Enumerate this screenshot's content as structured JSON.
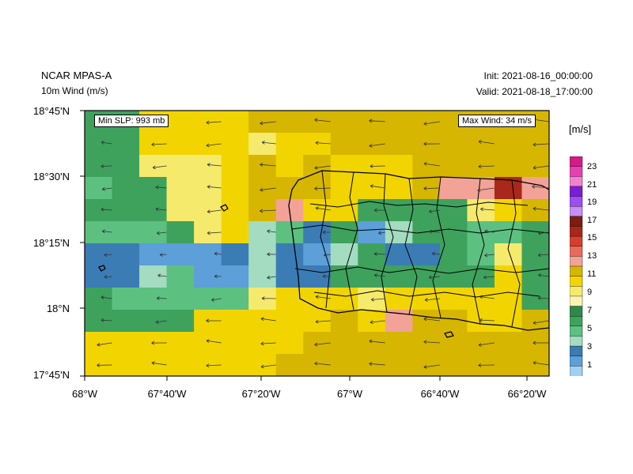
{
  "header": {
    "model": "NCAR MPAS-A",
    "field": "10m Wind (m/s)",
    "init": "Init: 2021-08-16_00:00:00",
    "valid": "Valid: 2021-08-18_17:00:00"
  },
  "annotations": {
    "min_slp": "Min SLP:   993 mb",
    "max_wind": "Max Wind:   34 m/s"
  },
  "axes": {
    "lat_labels": [
      "18°45'N",
      "18°30'N",
      "18°15'N",
      "18°N",
      "17°45'N"
    ],
    "lon_labels": [
      "68°W",
      "67°40'W",
      "67°20'W",
      "67°W",
      "66°40'W",
      "66°20'W"
    ]
  },
  "colorbar": {
    "unit": "[m/s]",
    "labels": [
      "23",
      "21",
      "19",
      "17",
      "15",
      "13",
      "11",
      "9",
      "7",
      "5",
      "3",
      "1"
    ],
    "colors": [
      "#d61a8a",
      "#e83fb0",
      "#f580d0",
      "#7a1fd6",
      "#9f4cf0",
      "#c58ff5",
      "#7c1d10",
      "#a8281b",
      "#d63f2f",
      "#ea6a5c",
      "#f2a297",
      "#d6b600",
      "#f2d500",
      "#f6ea6d",
      "#fbf3b3",
      "#2f8a4a",
      "#3ea25d",
      "#5cc081",
      "#a3dcc0",
      "#3b7cb5",
      "#5c9fd9",
      "#9fd1f4"
    ]
  },
  "chart_data": {
    "type": "heatmap",
    "title": "10m Wind (m/s)",
    "grid": {
      "lon_range": [
        -68.0,
        -66.25
      ],
      "lat_range": [
        17.75,
        18.75
      ],
      "values": [
        [
          6,
          6,
          10,
          10,
          10,
          10,
          11,
          11,
          11,
          11,
          11,
          11,
          11,
          11,
          11,
          11,
          11
        ],
        [
          6,
          6,
          10,
          10,
          10,
          10,
          9,
          10,
          10,
          11,
          11,
          11,
          11,
          11,
          11,
          11,
          11
        ],
        [
          6,
          6,
          9,
          9,
          9,
          10,
          11,
          10,
          11,
          10,
          10,
          10,
          11,
          11,
          11,
          11,
          11
        ],
        [
          5,
          6,
          6,
          9,
          9,
          10,
          11,
          11,
          11,
          10,
          10,
          10,
          11,
          12,
          12,
          15,
          12
        ],
        [
          6,
          6,
          6,
          9,
          9,
          10,
          11,
          12,
          10,
          10,
          6,
          6,
          6,
          6,
          9,
          10,
          11
        ],
        [
          5,
          5,
          5,
          6,
          9,
          10,
          4,
          5,
          3,
          6,
          2,
          4,
          6,
          6,
          5,
          5,
          6
        ],
        [
          3,
          3,
          2,
          2,
          2,
          3,
          4,
          3,
          2,
          4,
          6,
          3,
          3,
          6,
          5,
          9,
          6
        ],
        [
          3,
          3,
          4,
          5,
          2,
          2,
          4,
          3,
          3,
          6,
          6,
          6,
          6,
          6,
          6,
          10,
          6
        ],
        [
          6,
          5,
          5,
          5,
          5,
          5,
          9,
          10,
          10,
          10,
          9,
          10,
          10,
          10,
          10,
          10,
          6
        ],
        [
          6,
          6,
          6,
          6,
          10,
          10,
          10,
          10,
          10,
          11,
          10,
          12,
          11,
          11,
          10,
          10,
          11
        ],
        [
          10,
          10,
          10,
          10,
          10,
          10,
          10,
          10,
          11,
          11,
          11,
          11,
          11,
          11,
          11,
          11,
          11
        ],
        [
          10,
          10,
          10,
          10,
          10,
          10,
          10,
          11,
          11,
          11,
          11,
          11,
          11,
          11,
          11,
          11,
          11
        ]
      ]
    },
    "min_slp_mb": 993,
    "max_wind_ms": 34,
    "colorbar_levels": [
      1,
      2,
      3,
      4,
      5,
      6,
      7,
      8,
      9,
      10,
      11,
      12,
      13,
      14,
      15,
      16,
      17,
      18,
      19,
      20,
      21,
      22,
      23
    ]
  }
}
